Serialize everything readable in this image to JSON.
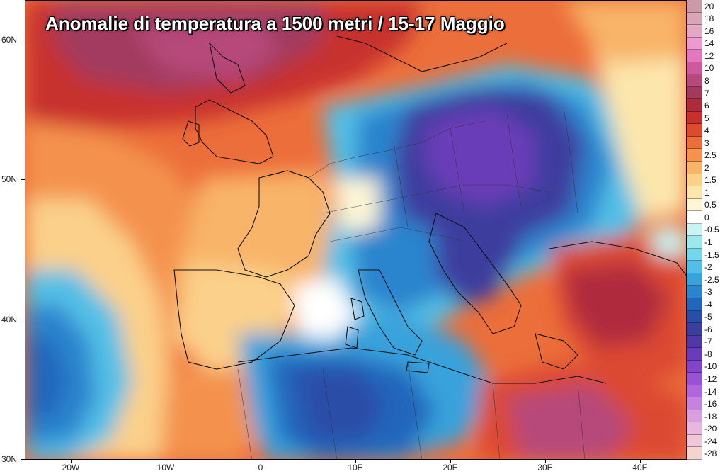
{
  "title": "Anomalie di temperatura a 1500 metri /  15-17 Maggio",
  "lat_labels": [
    "60N",
    "50N",
    "40N",
    "30N"
  ],
  "lon_labels": [
    "20W",
    "10W",
    "0",
    "10E",
    "20E",
    "30E",
    "40E"
  ],
  "legend": [
    {
      "label": "20",
      "color": "#c99aa8"
    },
    {
      "label": "18",
      "color": "#d8a6b6"
    },
    {
      "label": "16",
      "color": "#e4a8c4"
    },
    {
      "label": "14",
      "color": "#ec9ad0"
    },
    {
      "label": "12",
      "color": "#e478c0"
    },
    {
      "label": "10",
      "color": "#cc5a9c"
    },
    {
      "label": "8",
      "color": "#b64a7a"
    },
    {
      "label": "7",
      "color": "#a23a5e"
    },
    {
      "label": "6",
      "color": "#b02a3c"
    },
    {
      "label": "5",
      "color": "#c8302e"
    },
    {
      "label": "4",
      "color": "#dc4a30"
    },
    {
      "label": "3",
      "color": "#ec6e3a"
    },
    {
      "label": "2.5",
      "color": "#f4924e"
    },
    {
      "label": "2",
      "color": "#f8b468"
    },
    {
      "label": "1.5",
      "color": "#fbd08a"
    },
    {
      "label": "1",
      "color": "#fce6ac"
    },
    {
      "label": "0.5",
      "color": "#fdf6d6"
    },
    {
      "label": "0",
      "color": "#ffffff"
    },
    {
      "label": "-0.5",
      "color": "#c8f4f4"
    },
    {
      "label": "-1",
      "color": "#9ce8ee"
    },
    {
      "label": "-1.5",
      "color": "#74d6ec"
    },
    {
      "label": "-2",
      "color": "#52bfe6"
    },
    {
      "label": "-2.5",
      "color": "#38a2dc"
    },
    {
      "label": "-3",
      "color": "#2a84ce"
    },
    {
      "label": "-4",
      "color": "#2266bc"
    },
    {
      "label": "-5",
      "color": "#2a4ea8"
    },
    {
      "label": "-6",
      "color": "#3c3e9e"
    },
    {
      "label": "-7",
      "color": "#5038a8"
    },
    {
      "label": "-8",
      "color": "#6a3cb8"
    },
    {
      "label": "-10",
      "color": "#8244c8"
    },
    {
      "label": "-12",
      "color": "#9a52d4"
    },
    {
      "label": "-14",
      "color": "#b066dc"
    },
    {
      "label": "-16",
      "color": "#c682de"
    },
    {
      "label": "-18",
      "color": "#d8a0e0"
    },
    {
      "label": "-20",
      "color": "#e6b8e0"
    },
    {
      "label": "-24",
      "color": "#eec8d8"
    },
    {
      "label": "-28",
      "color": "#f4d4d0"
    }
  ]
}
